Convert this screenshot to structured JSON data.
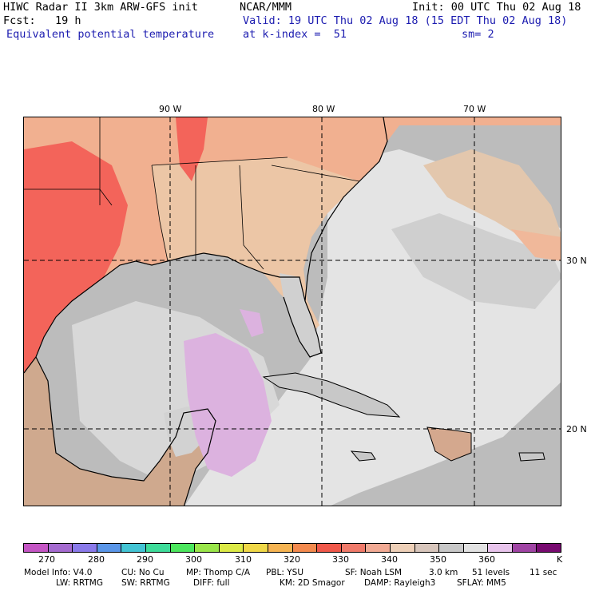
{
  "header": {
    "title": "HIWC Radar II 3km ARW-GFS init",
    "org": "NCAR/MMM",
    "init": "Init: 00 UTC Thu 02 Aug 18",
    "fcst": "Fcst:   19 h",
    "valid": "Valid: 19 UTC Thu 02 Aug 18 (15 EDT Thu 02 Aug 18)",
    "field": "Equivalent potential temperature",
    "level": "at k-index =  51",
    "smooth": "sm= 2"
  },
  "map": {
    "lon_labels": [
      "90 W",
      "80 W",
      "70 W"
    ],
    "lat_labels": [
      "30 N",
      "20 N"
    ],
    "colors": {
      "water": "#bcbcbc",
      "light": "#e6e6e6",
      "tan": "#eac7aa",
      "salmon": "#f4a080",
      "red": "#f55a4f",
      "lavender": "#dcb0e0",
      "coast": "#000000"
    }
  },
  "colorbar": {
    "colors": [
      "#c455c4",
      "#a56bd0",
      "#8a7aea",
      "#5a96e8",
      "#43c4d4",
      "#3edc9a",
      "#4ce65e",
      "#9ae64a",
      "#dcea46",
      "#f0d848",
      "#f6b452",
      "#f48a4e",
      "#f0584a",
      "#f07a6a",
      "#f2aa94",
      "#eed0b8",
      "#d8c6bc",
      "#c8c8c8",
      "#e2e2e2",
      "#e8c4ec",
      "#a044a4",
      "#780a70"
    ],
    "ticks": [
      "270",
      "280",
      "290",
      "300",
      "310",
      "320",
      "330",
      "340",
      "350",
      "360",
      "K"
    ]
  },
  "footer": {
    "line1": [
      "Model Info: V4.0",
      "CU: No Cu",
      "MP: Thomp C/A",
      "PBL: YSU",
      "SF: Noah LSM",
      "3.0 km",
      "51 levels",
      "11 sec"
    ],
    "line2": [
      "LW: RRTMG",
      "SW: RRTMG",
      "DIFF: full",
      "KM: 2D Smagor",
      "DAMP: Rayleigh3",
      "SFLAY: MM5"
    ]
  }
}
